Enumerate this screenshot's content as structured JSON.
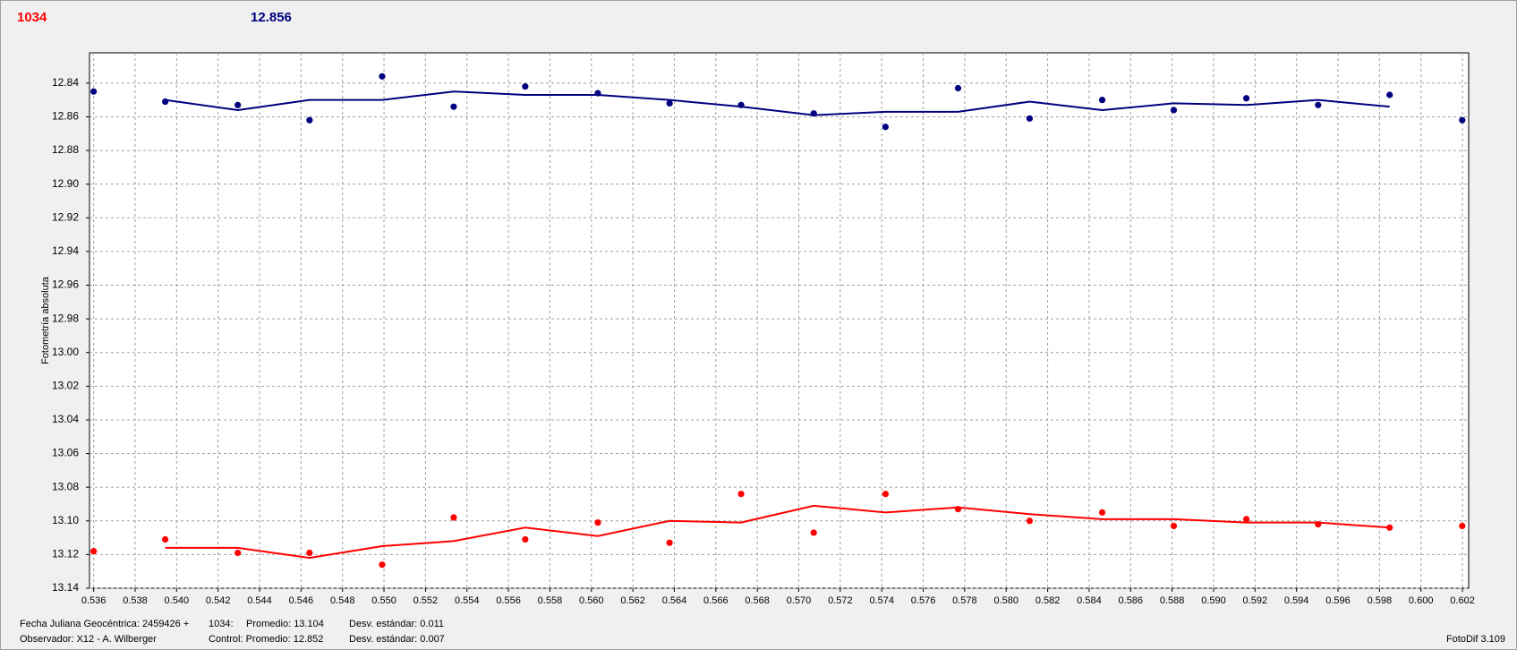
{
  "chart_data": {
    "type": "scatter",
    "y_label": "Fotometría absoluta",
    "x": [
      0.536,
      0.53945,
      0.54295,
      0.54641,
      0.54991,
      0.55336,
      0.55681,
      0.56031,
      0.56377,
      0.56722,
      0.57072,
      0.57418,
      0.57768,
      0.58113,
      0.58463,
      0.58808,
      0.59158,
      0.59504,
      0.59849,
      0.60199
    ],
    "series": [
      {
        "name": "1034",
        "color": "#ff0000",
        "values": [
          13.118,
          13.111,
          13.119,
          13.119,
          13.126,
          13.098,
          13.111,
          13.101,
          13.113,
          13.084,
          13.107,
          13.084,
          13.093,
          13.1,
          13.095,
          13.103,
          13.099,
          13.102,
          13.104,
          13.103
        ],
        "trend": [
          null,
          13.116,
          13.116,
          13.122,
          13.115,
          13.112,
          13.104,
          13.109,
          13.1,
          13.101,
          13.091,
          13.095,
          13.092,
          13.096,
          13.099,
          13.099,
          13.101,
          13.101,
          13.104,
          null
        ]
      },
      {
        "name": "12.856",
        "color": "#000080",
        "values": [
          12.845,
          12.851,
          12.853,
          12.862,
          12.836,
          12.854,
          12.842,
          12.846,
          12.852,
          12.853,
          12.858,
          12.866,
          12.843,
          12.861,
          12.85,
          12.856,
          12.849,
          12.853,
          12.847,
          12.862
        ],
        "trend": [
          null,
          12.85,
          12.856,
          12.85,
          12.85,
          12.845,
          12.847,
          12.847,
          12.85,
          12.854,
          12.859,
          12.857,
          12.857,
          12.851,
          12.856,
          12.852,
          12.853,
          12.85,
          12.854,
          null
        ]
      }
    ],
    "xlim": [
      0.5358,
      0.6023
    ],
    "ylim": [
      12.822,
      13.14
    ],
    "y_inverted": true,
    "grid": true,
    "xticks": [
      0.536,
      0.538,
      {
        "value": 0.54,
        "label": "0.540"
      },
      0.542,
      0.544,
      0.546,
      0.548,
      {
        "value": 0.55,
        "label": "0.550"
      },
      0.552,
      0.554,
      0.556,
      0.558,
      {
        "value": 0.56,
        "label": "0.560"
      },
      0.562,
      0.564,
      0.566,
      0.568,
      {
        "value": 0.57,
        "label": "0.570"
      },
      0.572,
      0.574,
      0.576,
      0.578,
      {
        "value": 0.58,
        "label": "0.580"
      },
      0.582,
      0.584,
      0.586,
      0.588,
      {
        "value": 0.59,
        "label": "0.590"
      },
      0.592,
      0.594,
      0.596,
      0.598,
      {
        "value": 0.6,
        "label": "0.600"
      },
      0.602
    ],
    "yticks": [
      12.84,
      12.86,
      12.88,
      {
        "value": 12.9,
        "label": "12.90"
      },
      12.92,
      12.94,
      12.96,
      12.98,
      {
        "value": 13.0,
        "label": "13.00"
      },
      13.02,
      13.04,
      13.06,
      13.08,
      {
        "value": 13.1,
        "label": "13.10"
      },
      13.12,
      13.14
    ],
    "footer": [
      "Fecha Juliana Geocéntrica: 2459426 +",
      "1034:",
      "Promedio: 13.104",
      "Desv. estándar: 0.011",
      "Observador: X12 - A. Wilberger",
      "Control: Promedio: 12.852",
      "Desv. estándar: 0.007",
      "FotoDif 3.109"
    ]
  }
}
